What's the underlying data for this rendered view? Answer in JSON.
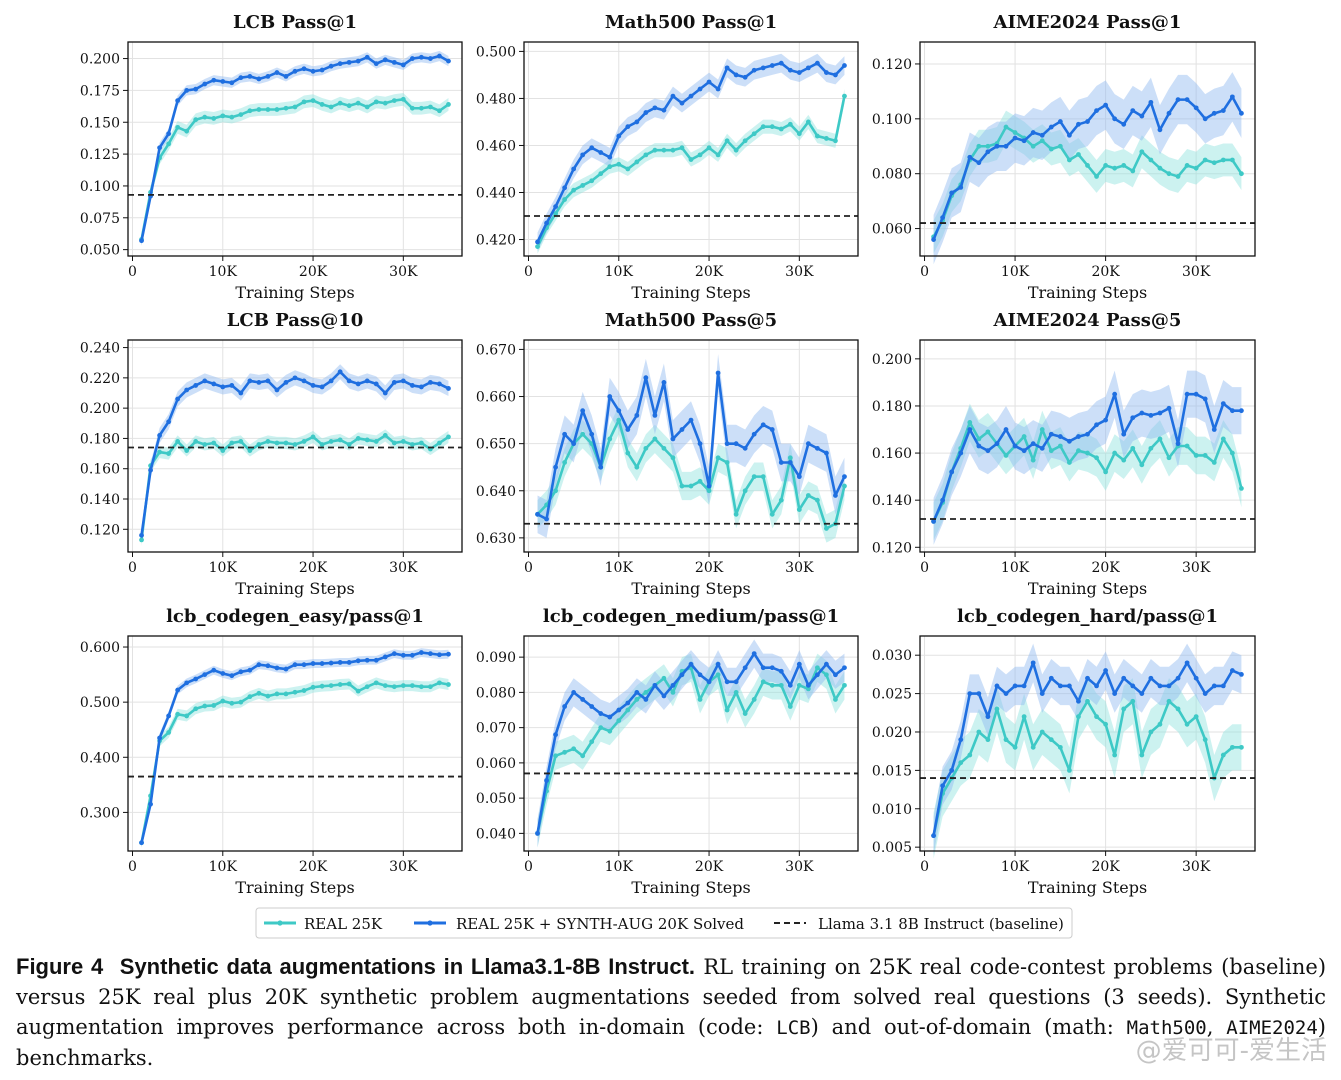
{
  "chart_data": [
    {
      "type": "line",
      "title": "LCB Pass@1",
      "xlabel": "Training Steps",
      "ylim": [
        0.045,
        0.213
      ],
      "yticks": [
        0.05,
        0.075,
        0.1,
        0.125,
        0.15,
        0.175,
        0.2
      ],
      "ytick_labels": [
        "0.050",
        "0.075",
        "0.100",
        "0.125",
        "0.150",
        "0.175",
        "0.200"
      ],
      "baseline": 0.093,
      "series": [
        {
          "name": "REAL 25K",
          "band": 0.005,
          "values": [
            0.058,
            0.095,
            0.122,
            0.133,
            0.146,
            0.143,
            0.152,
            0.154,
            0.153,
            0.155,
            0.154,
            0.156,
            0.159,
            0.16,
            0.16,
            0.16,
            0.161,
            0.162,
            0.166,
            0.167,
            0.164,
            0.162,
            0.165,
            0.163,
            0.165,
            0.162,
            0.166,
            0.165,
            0.167,
            0.168,
            0.161,
            0.161,
            0.162,
            0.159,
            0.164
          ]
        },
        {
          "name": "REAL 25K + SYNTH-AUG 20K Solved",
          "band": 0.004,
          "values": [
            0.057,
            0.092,
            0.13,
            0.141,
            0.167,
            0.175,
            0.176,
            0.18,
            0.183,
            0.182,
            0.181,
            0.185,
            0.186,
            0.184,
            0.186,
            0.189,
            0.186,
            0.19,
            0.192,
            0.19,
            0.191,
            0.194,
            0.196,
            0.197,
            0.198,
            0.201,
            0.196,
            0.199,
            0.197,
            0.195,
            0.2,
            0.201,
            0.2,
            0.202,
            0.198
          ]
        }
      ]
    },
    {
      "type": "line",
      "title": "Math500 Pass@1",
      "xlabel": "Training Steps",
      "ylim": [
        0.413,
        0.504
      ],
      "yticks": [
        0.42,
        0.44,
        0.46,
        0.48,
        0.5
      ],
      "ytick_labels": [
        "0.420",
        "0.440",
        "0.460",
        "0.480",
        "0.500"
      ],
      "baseline": 0.43,
      "series": [
        {
          "name": "REAL 25K",
          "band": 0.003,
          "values": [
            0.417,
            0.425,
            0.431,
            0.437,
            0.441,
            0.443,
            0.445,
            0.448,
            0.451,
            0.452,
            0.45,
            0.453,
            0.456,
            0.458,
            0.458,
            0.458,
            0.459,
            0.454,
            0.456,
            0.459,
            0.456,
            0.462,
            0.458,
            0.462,
            0.465,
            0.468,
            0.468,
            0.467,
            0.469,
            0.465,
            0.47,
            0.464,
            0.463,
            0.462,
            0.481
          ]
        },
        {
          "name": "REAL 25K + SYNTH-AUG 20K Solved",
          "band": 0.004,
          "values": [
            0.419,
            0.427,
            0.434,
            0.442,
            0.45,
            0.456,
            0.459,
            0.457,
            0.455,
            0.464,
            0.468,
            0.47,
            0.474,
            0.476,
            0.475,
            0.481,
            0.478,
            0.481,
            0.484,
            0.487,
            0.484,
            0.493,
            0.49,
            0.489,
            0.492,
            0.493,
            0.494,
            0.495,
            0.492,
            0.491,
            0.493,
            0.495,
            0.491,
            0.49,
            0.494
          ]
        }
      ]
    },
    {
      "type": "line",
      "title": "AIME2024 Pass@1",
      "xlabel": "Training Steps",
      "ylim": [
        0.05,
        0.128
      ],
      "yticks": [
        0.06,
        0.08,
        0.1,
        0.12
      ],
      "ytick_labels": [
        "0.060",
        "0.080",
        "0.100",
        "0.120"
      ],
      "baseline": 0.062,
      "series": [
        {
          "name": "REAL 25K",
          "band": 0.006,
          "values": [
            0.057,
            0.063,
            0.072,
            0.076,
            0.085,
            0.09,
            0.09,
            0.091,
            0.097,
            0.095,
            0.093,
            0.09,
            0.092,
            0.089,
            0.09,
            0.085,
            0.087,
            0.083,
            0.079,
            0.083,
            0.082,
            0.083,
            0.081,
            0.088,
            0.085,
            0.082,
            0.08,
            0.079,
            0.083,
            0.082,
            0.085,
            0.084,
            0.085,
            0.085,
            0.08
          ]
        },
        {
          "name": "REAL 25K + SYNTH-AUG 20K Solved",
          "band": 0.009,
          "values": [
            0.056,
            0.064,
            0.073,
            0.075,
            0.086,
            0.084,
            0.088,
            0.09,
            0.09,
            0.093,
            0.092,
            0.095,
            0.094,
            0.097,
            0.099,
            0.094,
            0.098,
            0.099,
            0.103,
            0.105,
            0.1,
            0.098,
            0.103,
            0.101,
            0.106,
            0.096,
            0.102,
            0.107,
            0.107,
            0.104,
            0.1,
            0.102,
            0.103,
            0.108,
            0.102
          ]
        }
      ]
    },
    {
      "type": "line",
      "title": "LCB Pass@10",
      "xlabel": "Training Steps",
      "ylim": [
        0.105,
        0.245
      ],
      "yticks": [
        0.12,
        0.14,
        0.16,
        0.18,
        0.2,
        0.22,
        0.24
      ],
      "ytick_labels": [
        "0.120",
        "0.140",
        "0.160",
        "0.180",
        "0.200",
        "0.220",
        "0.240"
      ],
      "baseline": 0.174,
      "series": [
        {
          "name": "REAL 25K",
          "band": 0.004,
          "values": [
            0.113,
            0.162,
            0.171,
            0.17,
            0.178,
            0.172,
            0.178,
            0.176,
            0.177,
            0.172,
            0.177,
            0.178,
            0.172,
            0.176,
            0.178,
            0.177,
            0.177,
            0.176,
            0.178,
            0.181,
            0.176,
            0.178,
            0.179,
            0.176,
            0.18,
            0.179,
            0.178,
            0.182,
            0.177,
            0.178,
            0.176,
            0.177,
            0.173,
            0.177,
            0.181
          ]
        },
        {
          "name": "REAL 25K + SYNTH-AUG 20K Solved",
          "band": 0.005,
          "values": [
            0.116,
            0.159,
            0.182,
            0.191,
            0.206,
            0.212,
            0.215,
            0.218,
            0.216,
            0.214,
            0.215,
            0.21,
            0.218,
            0.217,
            0.218,
            0.212,
            0.217,
            0.22,
            0.218,
            0.215,
            0.214,
            0.218,
            0.224,
            0.218,
            0.216,
            0.218,
            0.216,
            0.21,
            0.217,
            0.218,
            0.215,
            0.214,
            0.217,
            0.216,
            0.213
          ]
        }
      ]
    },
    {
      "type": "line",
      "title": "Math500 Pass@5",
      "xlabel": "Training Steps",
      "ylim": [
        0.627,
        0.672
      ],
      "yticks": [
        0.63,
        0.64,
        0.65,
        0.66,
        0.67
      ],
      "ytick_labels": [
        "0.630",
        "0.640",
        "0.650",
        "0.660",
        "0.670"
      ],
      "baseline": 0.633,
      "series": [
        {
          "name": "REAL 25K",
          "band": 0.003,
          "values": [
            0.635,
            0.637,
            0.64,
            0.646,
            0.65,
            0.652,
            0.65,
            0.645,
            0.651,
            0.655,
            0.648,
            0.645,
            0.649,
            0.651,
            0.649,
            0.647,
            0.641,
            0.641,
            0.642,
            0.64,
            0.647,
            0.646,
            0.635,
            0.64,
            0.643,
            0.643,
            0.635,
            0.638,
            0.647,
            0.636,
            0.639,
            0.638,
            0.632,
            0.633,
            0.641
          ]
        },
        {
          "name": "REAL 25K + SYNTH-AUG 20K Solved",
          "band": 0.004,
          "values": [
            0.635,
            0.634,
            0.645,
            0.652,
            0.65,
            0.657,
            0.652,
            0.645,
            0.66,
            0.657,
            0.653,
            0.656,
            0.664,
            0.656,
            0.663,
            0.651,
            0.653,
            0.655,
            0.65,
            0.641,
            0.665,
            0.65,
            0.65,
            0.649,
            0.652,
            0.654,
            0.653,
            0.646,
            0.646,
            0.643,
            0.65,
            0.649,
            0.648,
            0.639,
            0.643
          ]
        }
      ]
    },
    {
      "type": "line",
      "title": "AIME2024 Pass@5",
      "xlabel": "Training Steps",
      "ylim": [
        0.118,
        0.208
      ],
      "yticks": [
        0.12,
        0.14,
        0.16,
        0.18,
        0.2
      ],
      "ytick_labels": [
        "0.120",
        "0.140",
        "0.160",
        "0.180",
        "0.200"
      ],
      "baseline": 0.132,
      "series": [
        {
          "name": "REAL 25K",
          "band": 0.008,
          "values": [
            0.131,
            0.139,
            0.152,
            0.162,
            0.173,
            0.166,
            0.169,
            0.164,
            0.159,
            0.163,
            0.167,
            0.157,
            0.17,
            0.161,
            0.163,
            0.156,
            0.161,
            0.16,
            0.158,
            0.152,
            0.16,
            0.157,
            0.162,
            0.155,
            0.162,
            0.166,
            0.158,
            0.163,
            0.163,
            0.159,
            0.159,
            0.156,
            0.166,
            0.16,
            0.145
          ]
        },
        {
          "name": "REAL 25K + SYNTH-AUG 20K Solved",
          "band": 0.01,
          "values": [
            0.131,
            0.14,
            0.152,
            0.16,
            0.17,
            0.163,
            0.161,
            0.164,
            0.17,
            0.163,
            0.161,
            0.164,
            0.162,
            0.168,
            0.167,
            0.165,
            0.167,
            0.168,
            0.172,
            0.174,
            0.185,
            0.168,
            0.175,
            0.177,
            0.176,
            0.177,
            0.179,
            0.164,
            0.185,
            0.185,
            0.183,
            0.17,
            0.181,
            0.178,
            0.178
          ]
        }
      ]
    },
    {
      "type": "line",
      "title": "lcb_codegen_easy/pass@1",
      "xlabel": "Training Steps",
      "ylim": [
        0.23,
        0.62
      ],
      "yticks": [
        0.3,
        0.4,
        0.5,
        0.6
      ],
      "ytick_labels": [
        "0.300",
        "0.400",
        "0.500",
        "0.600"
      ],
      "baseline": 0.365,
      "series": [
        {
          "name": "REAL 25K",
          "band": 0.01,
          "values": [
            0.245,
            0.33,
            0.43,
            0.445,
            0.478,
            0.475,
            0.488,
            0.493,
            0.494,
            0.502,
            0.498,
            0.5,
            0.51,
            0.516,
            0.511,
            0.515,
            0.515,
            0.518,
            0.521,
            0.527,
            0.529,
            0.53,
            0.532,
            0.533,
            0.52,
            0.528,
            0.535,
            0.53,
            0.528,
            0.53,
            0.53,
            0.528,
            0.528,
            0.535,
            0.532
          ]
        },
        {
          "name": "REAL 25K + SYNTH-AUG 20K Solved",
          "band": 0.008,
          "values": [
            0.245,
            0.315,
            0.435,
            0.475,
            0.522,
            0.535,
            0.542,
            0.55,
            0.558,
            0.552,
            0.548,
            0.555,
            0.558,
            0.568,
            0.566,
            0.562,
            0.56,
            0.568,
            0.568,
            0.57,
            0.57,
            0.571,
            0.572,
            0.572,
            0.575,
            0.576,
            0.576,
            0.582,
            0.588,
            0.585,
            0.585,
            0.59,
            0.588,
            0.586,
            0.587
          ]
        }
      ]
    },
    {
      "type": "line",
      "title": "lcb_codegen_medium/pass@1",
      "xlabel": "Training Steps",
      "ylim": [
        0.035,
        0.096
      ],
      "yticks": [
        0.04,
        0.05,
        0.06,
        0.07,
        0.08,
        0.09
      ],
      "ytick_labels": [
        "0.040",
        "0.050",
        "0.060",
        "0.070",
        "0.080",
        "0.090"
      ],
      "baseline": 0.057,
      "series": [
        {
          "name": "REAL 25K",
          "band": 0.004,
          "values": [
            0.04,
            0.052,
            0.062,
            0.063,
            0.064,
            0.062,
            0.066,
            0.07,
            0.069,
            0.072,
            0.075,
            0.078,
            0.08,
            0.082,
            0.084,
            0.08,
            0.086,
            0.087,
            0.078,
            0.083,
            0.085,
            0.075,
            0.08,
            0.074,
            0.078,
            0.083,
            0.082,
            0.082,
            0.076,
            0.082,
            0.081,
            0.087,
            0.085,
            0.078,
            0.082
          ]
        },
        {
          "name": "REAL 25K + SYNTH-AUG 20K Solved",
          "band": 0.004,
          "values": [
            0.04,
            0.055,
            0.068,
            0.076,
            0.08,
            0.078,
            0.076,
            0.074,
            0.073,
            0.075,
            0.077,
            0.08,
            0.078,
            0.082,
            0.079,
            0.082,
            0.085,
            0.088,
            0.085,
            0.083,
            0.088,
            0.083,
            0.083,
            0.087,
            0.091,
            0.087,
            0.087,
            0.086,
            0.082,
            0.088,
            0.082,
            0.085,
            0.088,
            0.085,
            0.087
          ]
        }
      ]
    },
    {
      "type": "line",
      "title": "lcb_codegen_hard/pass@1",
      "xlabel": "Training Steps",
      "ylim": [
        0.0045,
        0.0325
      ],
      "yticks": [
        0.005,
        0.01,
        0.015,
        0.02,
        0.025,
        0.03
      ],
      "ytick_labels": [
        "0.005",
        "0.010",
        "0.015",
        "0.020",
        "0.025",
        "0.030"
      ],
      "baseline": 0.014,
      "series": [
        {
          "name": "REAL 25K",
          "band": 0.003,
          "values": [
            0.0065,
            0.012,
            0.014,
            0.016,
            0.017,
            0.02,
            0.019,
            0.023,
            0.019,
            0.018,
            0.022,
            0.018,
            0.02,
            0.019,
            0.018,
            0.015,
            0.022,
            0.024,
            0.022,
            0.021,
            0.017,
            0.023,
            0.024,
            0.017,
            0.02,
            0.021,
            0.024,
            0.023,
            0.021,
            0.022,
            0.019,
            0.014,
            0.017,
            0.018,
            0.018
          ]
        },
        {
          "name": "REAL 25K + SYNTH-AUG 20K Solved",
          "band": 0.0025,
          "values": [
            0.0065,
            0.013,
            0.015,
            0.019,
            0.025,
            0.025,
            0.022,
            0.026,
            0.025,
            0.026,
            0.026,
            0.029,
            0.025,
            0.027,
            0.026,
            0.026,
            0.024,
            0.027,
            0.026,
            0.028,
            0.025,
            0.027,
            0.026,
            0.025,
            0.027,
            0.026,
            0.026,
            0.027,
            0.029,
            0.027,
            0.025,
            0.026,
            0.026,
            0.028,
            0.0275
          ]
        }
      ]
    }
  ],
  "shared": {
    "x_steps_k": [
      1,
      2,
      3,
      4,
      5,
      6,
      7,
      8,
      9,
      10,
      11,
      12,
      13,
      14,
      15,
      16,
      17,
      18,
      19,
      20,
      21,
      22,
      23,
      24,
      25,
      26,
      27,
      28,
      29,
      30,
      31,
      32,
      33,
      34,
      35
    ],
    "xlim_k": [
      -0.5,
      36.5
    ],
    "xticks_k": [
      0,
      10,
      20,
      30
    ],
    "xtick_labels": [
      "0",
      "10K",
      "20K",
      "30K"
    ],
    "colors": {
      "real": "#3ec9c6",
      "real_band": "#8fe3de",
      "synth": "#1f6fe0",
      "synth_band": "#8db8f0",
      "baseline": "#222222",
      "grid": "#e2e2e2"
    }
  },
  "legend": {
    "real_label": "REAL 25K",
    "synth_label": "REAL 25K + SYNTH-AUG 20K Solved",
    "baseline_label": "Llama 3.1 8B Instruct (baseline)"
  },
  "caption": {
    "figure_label": "Figure 4",
    "title": "Synthetic data augmentations in Llama3.1-8B Instruct.",
    "body_1": "RL training on 25K real code-contest problems (baseline) versus 25K real plus 20K synthetic problem augmentations seeded from solved real questions (3 seeds). Synthetic augmentation improves performance across both in-domain (code: ",
    "code_1": "LCB",
    "body_2": ") and out-of-domain (math: ",
    "code_2": "Math500",
    "body_3": ", ",
    "code_3": "AIME2024",
    "body_4": ") benchmarks."
  },
  "watermark": "@爱可可-爱生活"
}
